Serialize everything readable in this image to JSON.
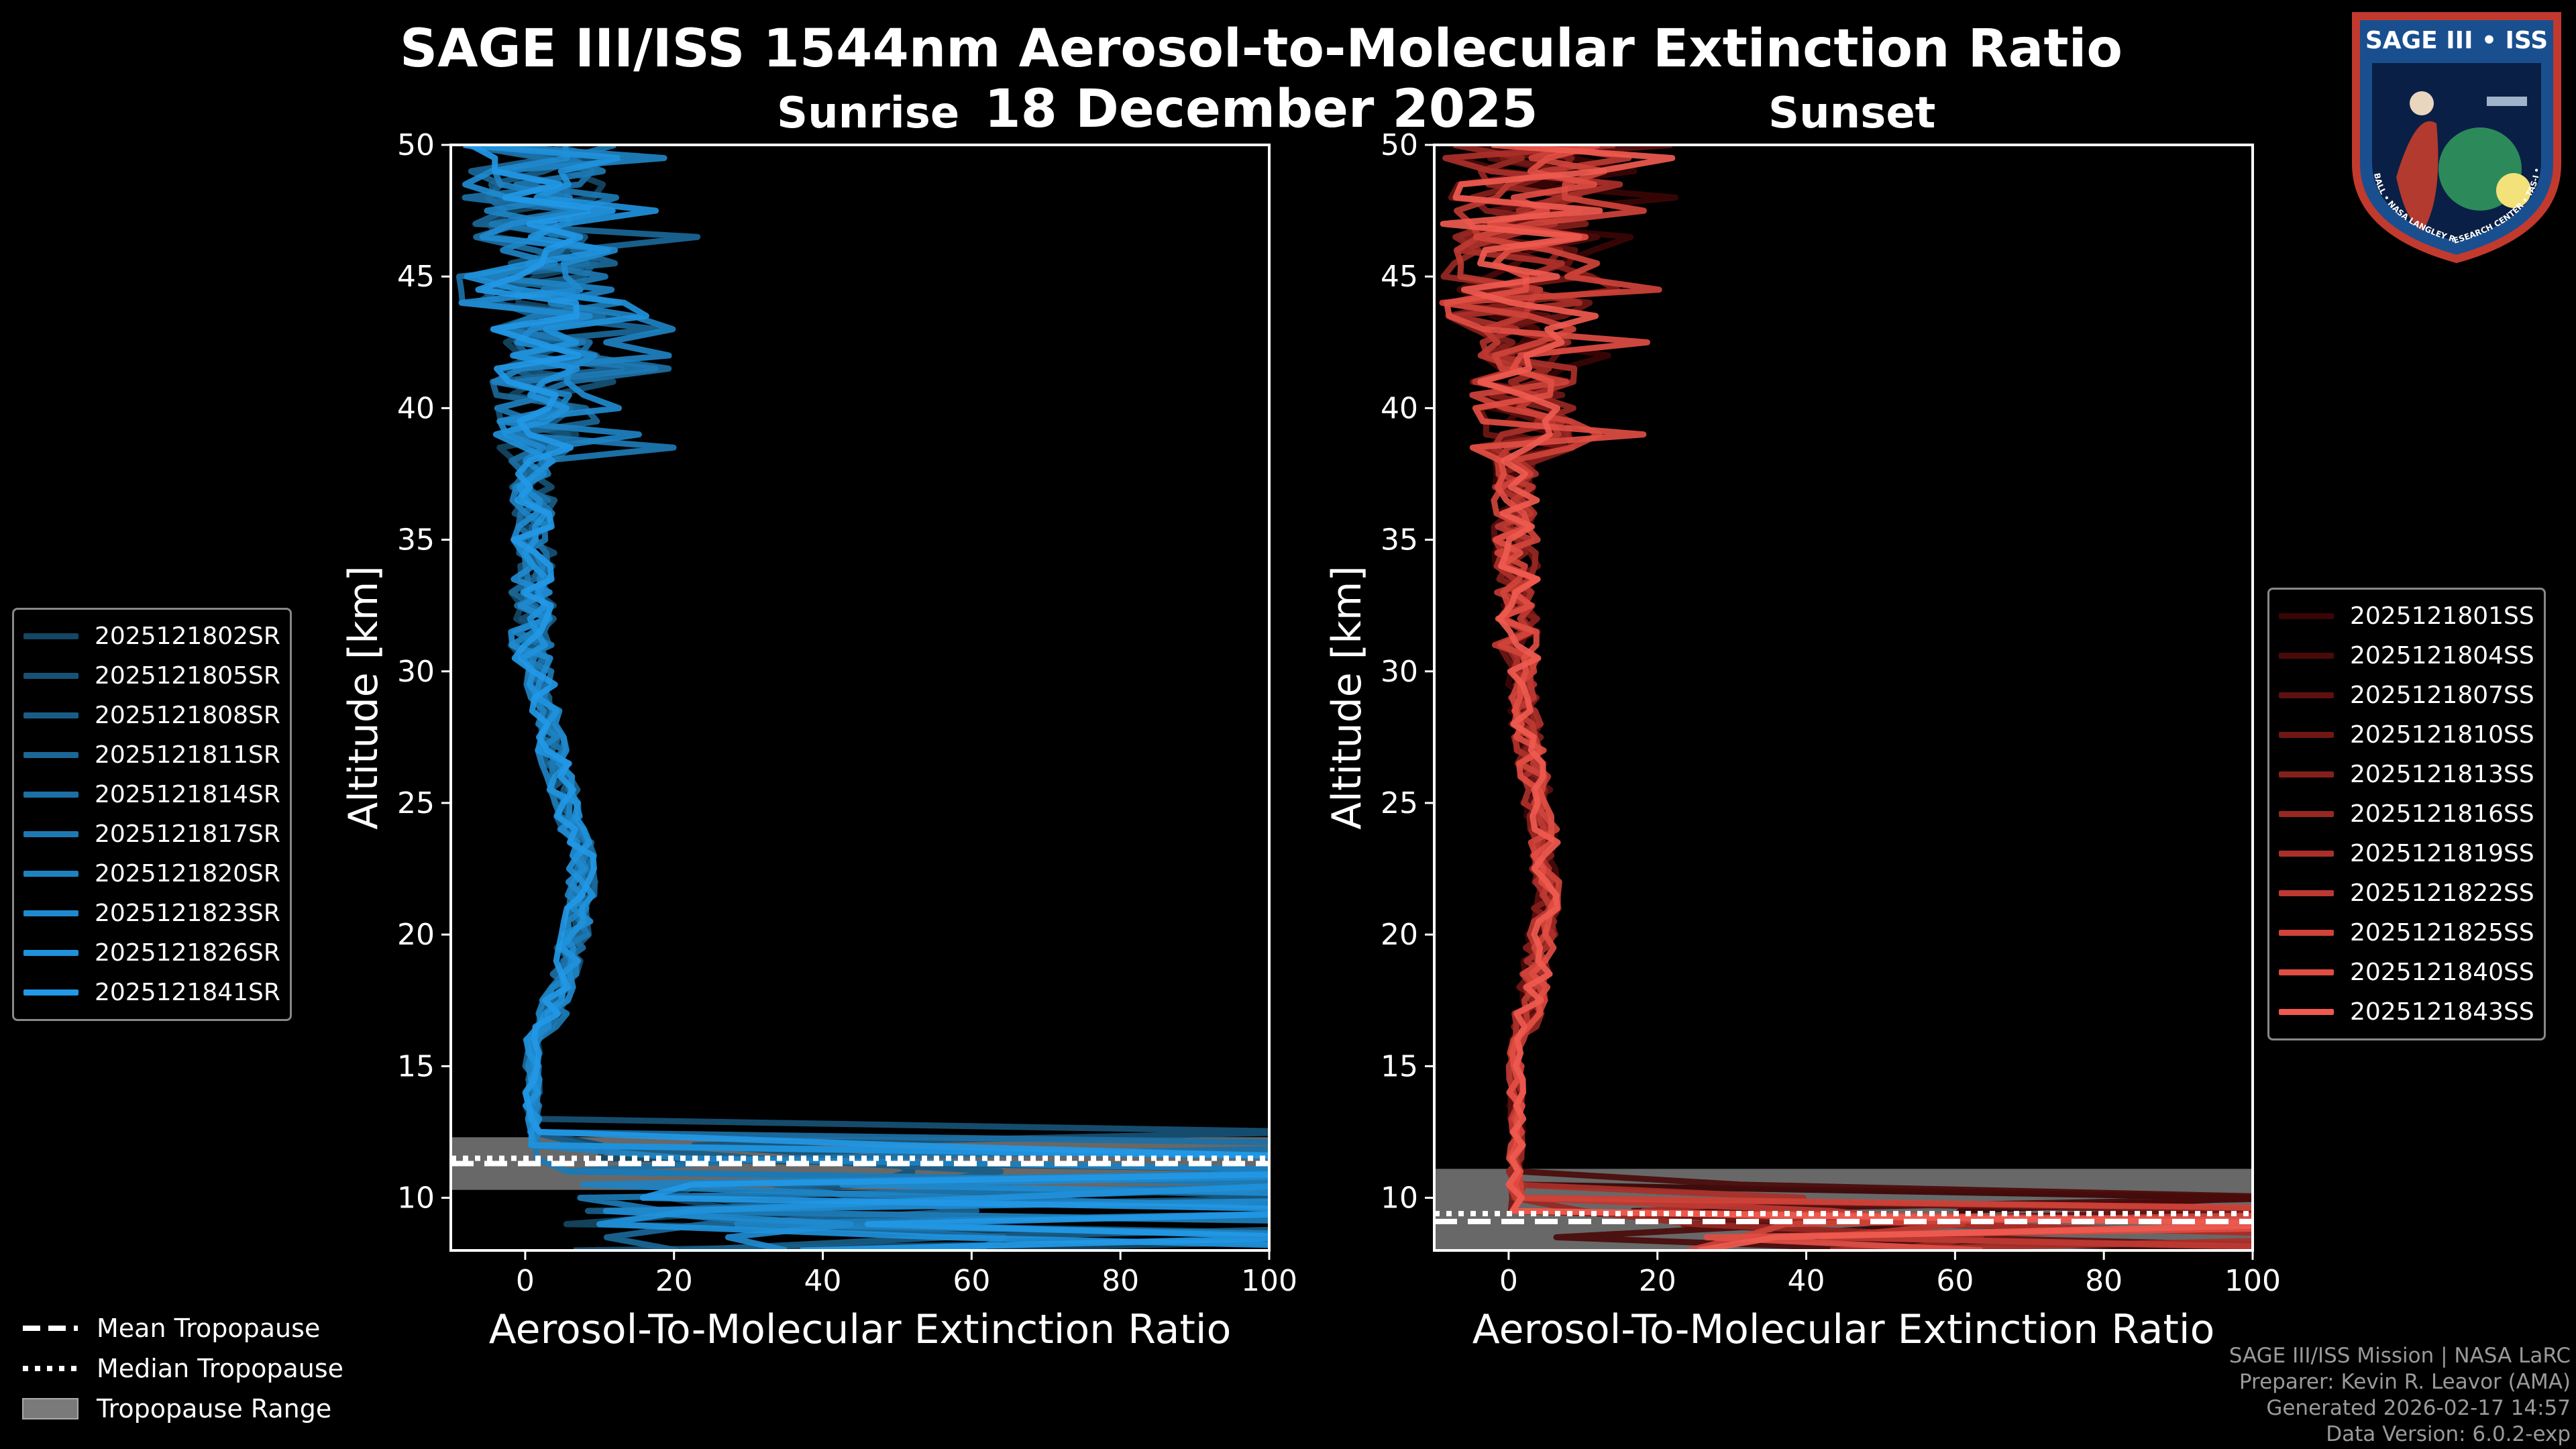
{
  "title": "SAGE III/ISS 1544nm Aerosol-to-Molecular Extinction Ratio",
  "date": "18 December 2025",
  "logo": {
    "text_top": "SAGE III • ISS",
    "text_ring": "BALL • NASA LANGLEY RESEARCH CENTER • TAS-I • ESA"
  },
  "credits": [
    "SAGE III/ISS Mission | NASA LaRC",
    "Preparer: Kevin R. Leavor (AMA)",
    "Generated 2026-02-17 14:57",
    "Data Version: 6.0.2-exp"
  ],
  "tropopause_legend": {
    "mean": "Mean Tropopause",
    "median": "Median Tropopause",
    "range": "Tropopause Range"
  },
  "chart_data": [
    {
      "type": "line",
      "panel": "sunrise",
      "title": "Sunrise",
      "xlabel": "Aerosol-To-Molecular Extinction Ratio",
      "ylabel": "Altitude [km]",
      "xlim": [
        -10,
        100
      ],
      "ylim": [
        8,
        50
      ],
      "xticks": [
        0,
        20,
        40,
        60,
        80,
        100
      ],
      "yticks": [
        10,
        15,
        20,
        25,
        30,
        35,
        40,
        45,
        50
      ],
      "grid": false,
      "legend_position": "left",
      "tropopause": {
        "mean": 11.3,
        "median": 11.5,
        "range": [
          10.3,
          12.3
        ]
      },
      "series": [
        {
          "name": "2025121802SR",
          "color": "#154663"
        },
        {
          "name": "2025121805SR",
          "color": "#175276"
        },
        {
          "name": "2025121808SR",
          "color": "#195d87"
        },
        {
          "name": "2025121811SR",
          "color": "#1b6797"
        },
        {
          "name": "2025121814SR",
          "color": "#1c70a6"
        },
        {
          "name": "2025121817SR",
          "color": "#1d79b4"
        },
        {
          "name": "2025121820SR",
          "color": "#1e82c2"
        },
        {
          "name": "2025121823SR",
          "color": "#1f8acf"
        },
        {
          "name": "2025121826SR",
          "color": "#2091db"
        },
        {
          "name": "2025121841SR",
          "color": "#2298e6"
        }
      ]
    },
    {
      "type": "line",
      "panel": "sunset",
      "title": "Sunset",
      "xlabel": "Aerosol-To-Molecular Extinction Ratio",
      "ylabel": "Altitude [km]",
      "xlim": [
        -10,
        100
      ],
      "ylim": [
        8,
        50
      ],
      "xticks": [
        0,
        20,
        40,
        60,
        80,
        100
      ],
      "yticks": [
        10,
        15,
        20,
        25,
        30,
        35,
        40,
        45,
        50
      ],
      "grid": false,
      "legend_position": "right",
      "tropopause": {
        "mean": 9.1,
        "median": 9.4,
        "range": [
          8.0,
          11.1
        ]
      },
      "series": [
        {
          "name": "2025121801SS",
          "color": "#3a0505"
        },
        {
          "name": "2025121804SS",
          "color": "#4a0a0a"
        },
        {
          "name": "2025121807SS",
          "color": "#5e1010"
        },
        {
          "name": "2025121810SS",
          "color": "#701715"
        },
        {
          "name": "2025121813SS",
          "color": "#84201b"
        },
        {
          "name": "2025121816SS",
          "color": "#972822"
        },
        {
          "name": "2025121819SS",
          "color": "#aa302a"
        },
        {
          "name": "2025121822SS",
          "color": "#bd3932"
        },
        {
          "name": "2025121825SS",
          "color": "#cf433a"
        },
        {
          "name": "2025121840SS",
          "color": "#df4d43"
        },
        {
          "name": "2025121843SS",
          "color": "#ef5a4f"
        }
      ]
    }
  ]
}
